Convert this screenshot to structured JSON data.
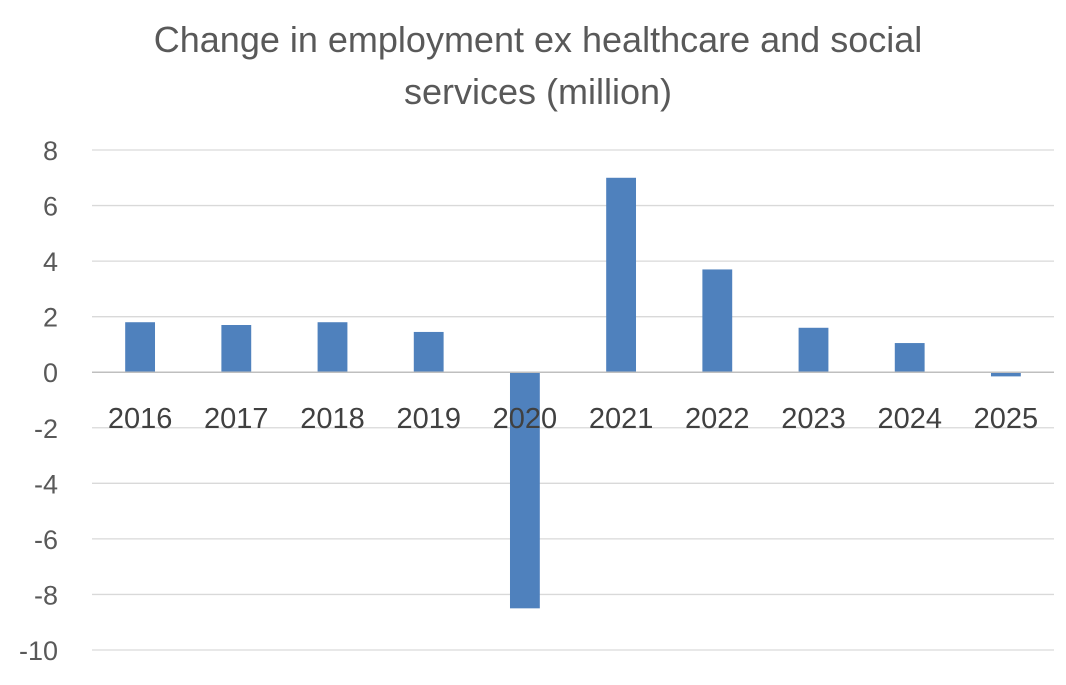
{
  "chart_data": {
    "type": "bar",
    "title_line1": "Change in employment ex healthcare and social",
    "title_line2": "services (million)",
    "categories": [
      "2016",
      "2017",
      "2018",
      "2019",
      "2020",
      "2021",
      "2022",
      "2023",
      "2024",
      "2025"
    ],
    "values": [
      1.8,
      1.7,
      1.8,
      1.45,
      -8.5,
      7.0,
      3.7,
      1.6,
      1.05,
      -0.15
    ],
    "ylim": [
      -10,
      8
    ],
    "yticks": [
      8,
      6,
      4,
      2,
      0,
      -2,
      -4,
      -6,
      -8,
      -10
    ],
    "ytick_labels": [
      "8",
      "6",
      "4",
      "2",
      "0",
      "-2",
      "-4",
      "-6",
      "-8",
      "-10"
    ],
    "grid": true,
    "legend": false,
    "bar_color": "#4f81bd"
  }
}
